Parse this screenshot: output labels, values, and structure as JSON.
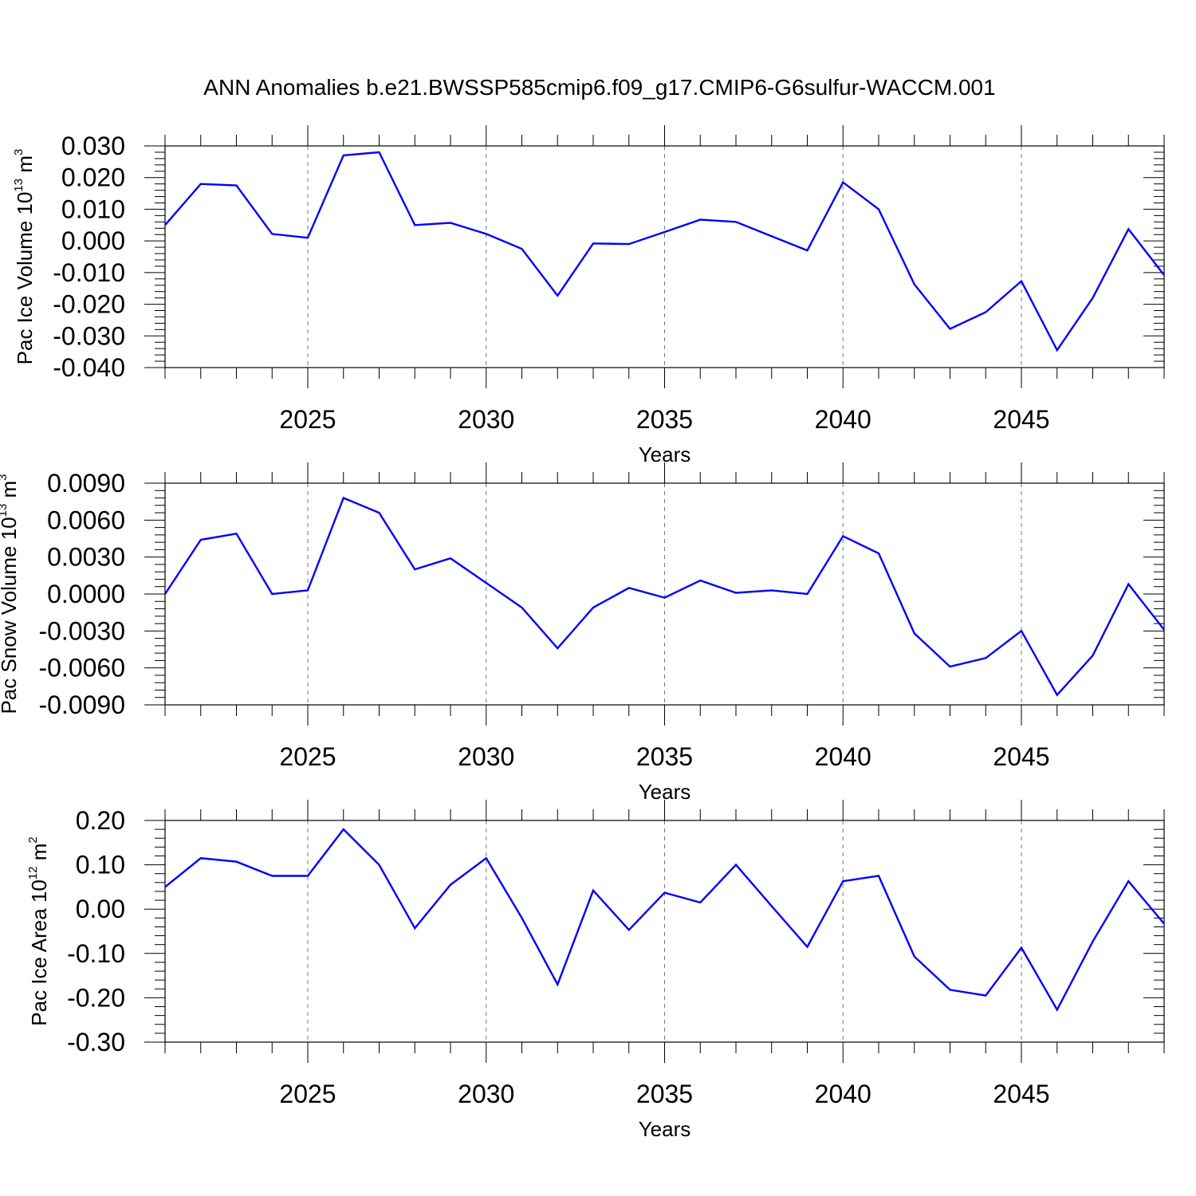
{
  "title": "ANN Anomalies b.e21.BWSSP585cmip6.f09_g17.CMIP6-G6sulfur-WACCM.001",
  "colors": {
    "line": "#0000ff",
    "axis": "#000000",
    "grid": "#777777"
  },
  "chart_data": [
    {
      "type": "line",
      "ylabel": {
        "main": "Pac Ice Volume 10",
        "exp": "13",
        "unit": " m",
        "unit_exp": "3"
      },
      "xlabel": "Years",
      "xlim": [
        2021,
        2049
      ],
      "ylim": [
        -0.04,
        0.03
      ],
      "x_ticks": [
        "2025",
        "2030",
        "2035",
        "2040",
        "2045"
      ],
      "y_ticks": [
        "0.030",
        "0.020",
        "0.010",
        "0.000",
        "-0.010",
        "-0.020",
        "-0.030",
        "-0.040"
      ],
      "y_tick_values": [
        0.03,
        0.02,
        0.01,
        0.0,
        -0.01,
        -0.02,
        -0.03,
        -0.04
      ],
      "grid": "dashed vertical lines at major x ticks",
      "x": [
        2021,
        2022,
        2023,
        2024,
        2025,
        2026,
        2027,
        2028,
        2029,
        2030,
        2031,
        2032,
        2033,
        2034,
        2035,
        2036,
        2037,
        2038,
        2039,
        2040,
        2041,
        2042,
        2043,
        2044,
        2045,
        2046,
        2047,
        2048,
        2049
      ],
      "series": [
        {
          "values": [
            0.005,
            0.018,
            0.0175,
            0.0022,
            0.001,
            0.027,
            0.028,
            0.005,
            0.0057,
            0.0022,
            -0.0025,
            -0.0173,
            -0.0008,
            -0.001,
            0.0028,
            0.0067,
            0.006,
            0.0015,
            -0.003,
            0.0185,
            0.01,
            -0.0137,
            -0.0278,
            -0.0225,
            -0.0127,
            -0.0345,
            -0.018,
            0.0037,
            -0.0108
          ]
        }
      ]
    },
    {
      "type": "line",
      "ylabel": {
        "main": "Pac Snow Volume 10",
        "exp": "13",
        "unit": " m",
        "unit_exp": "3"
      },
      "xlabel": "Years",
      "xlim": [
        2021,
        2049
      ],
      "ylim": [
        -0.009,
        0.009
      ],
      "x_ticks": [
        "2025",
        "2030",
        "2035",
        "2040",
        "2045"
      ],
      "y_ticks": [
        "0.0090",
        "0.0060",
        "0.0030",
        "0.0000",
        "-0.0030",
        "-0.0060",
        "-0.0090"
      ],
      "y_tick_values": [
        0.009,
        0.006,
        0.003,
        0.0,
        -0.003,
        -0.006,
        -0.009
      ],
      "grid": "dashed vertical lines at major x ticks",
      "x": [
        2021,
        2022,
        2023,
        2024,
        2025,
        2026,
        2027,
        2028,
        2029,
        2030,
        2031,
        2032,
        2033,
        2034,
        2035,
        2036,
        2037,
        2038,
        2039,
        2040,
        2041,
        2042,
        2043,
        2044,
        2045,
        2046,
        2047,
        2048,
        2049
      ],
      "series": [
        {
          "values": [
            0.0,
            0.0044,
            0.0049,
            0.0,
            0.0003,
            0.0078,
            0.0066,
            0.002,
            0.0029,
            0.0009,
            -0.0011,
            -0.0044,
            -0.0011,
            0.0005,
            -0.0003,
            0.0011,
            0.0001,
            0.0003,
            0.0,
            0.0047,
            0.0033,
            -0.0032,
            -0.0059,
            -0.0052,
            -0.003,
            -0.0082,
            -0.005,
            0.0008,
            -0.0029
          ]
        }
      ]
    },
    {
      "type": "line",
      "ylabel": {
        "main": "Pac Ice Area 10",
        "exp": "12",
        "unit": " m",
        "unit_exp": "2"
      },
      "xlabel": "Years",
      "xlim": [
        2021,
        2049
      ],
      "ylim": [
        -0.3,
        0.2
      ],
      "x_ticks": [
        "2025",
        "2030",
        "2035",
        "2040",
        "2045"
      ],
      "y_ticks": [
        "0.20",
        "0.10",
        "0.00",
        "-0.10",
        "-0.20",
        "-0.30"
      ],
      "y_tick_values": [
        0.2,
        0.1,
        0.0,
        -0.1,
        -0.2,
        -0.3
      ],
      "grid": "dashed vertical lines at major x ticks",
      "x": [
        2021,
        2022,
        2023,
        2024,
        2025,
        2026,
        2027,
        2028,
        2029,
        2030,
        2031,
        2032,
        2033,
        2034,
        2035,
        2036,
        2037,
        2038,
        2039,
        2040,
        2041,
        2042,
        2043,
        2044,
        2045,
        2046,
        2047,
        2048,
        2049
      ],
      "series": [
        {
          "values": [
            0.05,
            0.115,
            0.107,
            0.075,
            0.075,
            0.18,
            0.1,
            -0.043,
            0.055,
            0.115,
            -0.02,
            -0.17,
            0.042,
            -0.047,
            0.037,
            0.015,
            0.1,
            0.007,
            -0.085,
            0.063,
            0.075,
            -0.107,
            -0.182,
            -0.195,
            -0.087,
            -0.227,
            -0.073,
            0.063,
            -0.033
          ]
        }
      ]
    }
  ]
}
